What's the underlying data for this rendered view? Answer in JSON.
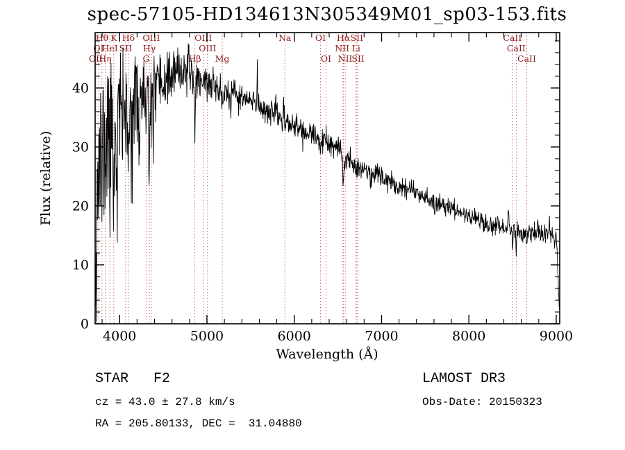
{
  "title": "spec-57105-HD134613N305349M01_sp03-153.fits",
  "footer": {
    "class_label": "STAR   F2",
    "cz": "cz = 43.0 ± 27.8 km/s",
    "radec": "RA = 205.80133, DEC =  31.04880",
    "survey": "LAMOST DR3",
    "obs_date": "Obs-Date: 20150323"
  },
  "chart_data": {
    "type": "line",
    "title": "spec-57105-HD134613N305349M01_sp03-153.fits",
    "xlabel": "Wavelength (Å)",
    "ylabel": "Flux (relative)",
    "xlim": [
      3720,
      9040
    ],
    "ylim": [
      0,
      49.4
    ],
    "x_major_ticks": [
      4000,
      5000,
      6000,
      7000,
      8000,
      9000
    ],
    "x_minor_step": 200,
    "y_major_ticks": [
      0,
      10,
      20,
      30,
      40
    ],
    "y_minor_step": 2,
    "grid": false,
    "legend": "none",
    "line_color": "#000000",
    "marker_color": "#bb3333",
    "label_color": "#8b1a1a",
    "spectral_lines": [
      {
        "label": "Hθ",
        "wavelength": 3798.0,
        "row": 1
      },
      {
        "label": "K",
        "wavelength": 3933.7,
        "row": 1
      },
      {
        "label": "Hδ",
        "wavelength": 4101.7,
        "row": 1
      },
      {
        "label": "OIII",
        "wavelength": 4363.2,
        "row": 1
      },
      {
        "label": "OIII",
        "wavelength": 4959.0,
        "row": 1
      },
      {
        "label": "Na",
        "wavelength": 5893.0,
        "row": 1
      },
      {
        "label": "OI",
        "wavelength": 6300.3,
        "row": 1
      },
      {
        "label": "Hα",
        "wavelength": 6562.8,
        "row": 1
      },
      {
        "label": "SII",
        "wavelength": 6716.4,
        "row": 1
      },
      {
        "label": "CaII",
        "wavelength": 8498.0,
        "row": 1
      },
      {
        "label": "OI",
        "wavelength": 3760.0,
        "row": 2
      },
      {
        "label": "HeI",
        "wavelength": 3889.0,
        "row": 2
      },
      {
        "label": "SII",
        "wavelength": 4068.6,
        "row": 2
      },
      {
        "label": "Hγ",
        "wavelength": 4340.5,
        "row": 2
      },
      {
        "label": "OIII",
        "wavelength": 5006.8,
        "row": 2
      },
      {
        "label": "NII",
        "wavelength": 6548.1,
        "row": 2
      },
      {
        "label": "Li",
        "wavelength": 6707.8,
        "row": 2
      },
      {
        "label": "CaII",
        "wavelength": 8542.1,
        "row": 2
      },
      {
        "label": "OII",
        "wavelength": 3727.1,
        "row": 3
      },
      {
        "label": "Hη",
        "wavelength": 3835.4,
        "row": 3
      },
      {
        "label": "G",
        "wavelength": 4304.4,
        "row": 3
      },
      {
        "label": "Hβ",
        "wavelength": 4861.3,
        "row": 3
      },
      {
        "label": "Mg",
        "wavelength": 5175.4,
        "row": 3
      },
      {
        "label": "OI",
        "wavelength": 6363.8,
        "row": 3
      },
      {
        "label": "NII",
        "wavelength": 6583.5,
        "row": 3
      },
      {
        "label": "SII",
        "wavelength": 6730.8,
        "row": 3
      },
      {
        "label": "CaII",
        "wavelength": 8662.1,
        "row": 3
      }
    ],
    "spectrum": {
      "step": 4,
      "seed": 11,
      "continuum": [
        [
          3722,
          14
        ],
        [
          3740,
          22
        ],
        [
          3760,
          28
        ],
        [
          3790,
          32
        ],
        [
          3830,
          34
        ],
        [
          3880,
          35.5
        ],
        [
          3950,
          37
        ],
        [
          4050,
          38
        ],
        [
          4150,
          38.5
        ],
        [
          4250,
          39
        ],
        [
          4350,
          39.5
        ],
        [
          4450,
          40.5
        ],
        [
          4550,
          41.5
        ],
        [
          4650,
          42.5
        ],
        [
          4750,
          43
        ],
        [
          4850,
          42.5
        ],
        [
          4950,
          41.5
        ],
        [
          5050,
          40.5
        ],
        [
          5150,
          40
        ],
        [
          5250,
          39
        ],
        [
          5350,
          38.5
        ],
        [
          5450,
          38
        ],
        [
          5550,
          37.2
        ],
        [
          5650,
          36.5
        ],
        [
          5750,
          36
        ],
        [
          5850,
          35
        ],
        [
          5950,
          34
        ],
        [
          6050,
          33.2
        ],
        [
          6150,
          32.4
        ],
        [
          6250,
          31.6
        ],
        [
          6350,
          30.8
        ],
        [
          6450,
          30
        ],
        [
          6550,
          29
        ],
        [
          6650,
          27.5
        ],
        [
          6750,
          26.6
        ],
        [
          6850,
          26
        ],
        [
          6950,
          25.4
        ],
        [
          7050,
          24.6
        ],
        [
          7150,
          24
        ],
        [
          7250,
          23.4
        ],
        [
          7350,
          22.7
        ],
        [
          7450,
          22
        ],
        [
          7550,
          21.3
        ],
        [
          7650,
          20.6
        ],
        [
          7750,
          19.9
        ],
        [
          7850,
          19.2
        ],
        [
          7950,
          18.6
        ],
        [
          8050,
          18
        ],
        [
          8150,
          17.5
        ],
        [
          8250,
          17
        ],
        [
          8350,
          16.5
        ],
        [
          8450,
          16
        ],
        [
          8550,
          15.7
        ],
        [
          8650,
          15.4
        ],
        [
          8750,
          15.2
        ],
        [
          8850,
          15.1
        ],
        [
          8950,
          15
        ],
        [
          9000,
          14.5
        ],
        [
          9012,
          12
        ],
        [
          9022,
          8
        ],
        [
          9032,
          4
        ],
        [
          9040,
          2
        ]
      ],
      "noise_sigma": [
        [
          3722,
          5.5
        ],
        [
          3850,
          5
        ],
        [
          3950,
          4.5
        ],
        [
          4100,
          3.6
        ],
        [
          4300,
          2.8
        ],
        [
          4500,
          2.2
        ],
        [
          4800,
          1.6
        ],
        [
          5200,
          1.3
        ],
        [
          5600,
          1.15
        ],
        [
          6000,
          1.05
        ],
        [
          6500,
          0.95
        ],
        [
          7000,
          0.9
        ],
        [
          7600,
          0.85
        ],
        [
          8200,
          0.85
        ],
        [
          8700,
          0.9
        ],
        [
          9040,
          0.7
        ]
      ],
      "absorption": [
        [
          3798,
          6,
          5
        ],
        [
          3835,
          7,
          5
        ],
        [
          3889,
          8,
          5
        ],
        [
          3934,
          13,
          6
        ],
        [
          3968,
          12,
          6
        ],
        [
          4026,
          5,
          4
        ],
        [
          4072,
          5,
          4
        ],
        [
          4101,
          13,
          7
        ],
        [
          4144,
          4,
          4
        ],
        [
          4227,
          6,
          4
        ],
        [
          4305,
          6,
          6
        ],
        [
          4340,
          13,
          7
        ],
        [
          4383,
          5,
          4
        ],
        [
          4455,
          3,
          4
        ],
        [
          4481,
          3.5,
          4
        ],
        [
          4861,
          9.5,
          7
        ],
        [
          4921,
          2,
          4
        ],
        [
          5175,
          3,
          8
        ],
        [
          5270,
          2.5,
          5
        ],
        [
          5893,
          2.5,
          5
        ],
        [
          6122,
          1.5,
          4
        ],
        [
          6300,
          1.5,
          4
        ],
        [
          6563,
          5,
          8
        ],
        [
          6870,
          2,
          8
        ],
        [
          7190,
          1.5,
          8
        ],
        [
          7605,
          2.5,
          9
        ],
        [
          8230,
          1.5,
          8
        ],
        [
          8498,
          1.8,
          5
        ],
        [
          8542,
          2.2,
          5
        ],
        [
          8662,
          2.2,
          5
        ]
      ],
      "emission": [
        [
          5577,
          10,
          2.5
        ],
        [
          8450,
          3.5,
          5
        ],
        [
          8695,
          2,
          5
        ],
        [
          8790,
          1.8,
          5
        ],
        [
          8920,
          1.5,
          4
        ]
      ]
    }
  }
}
